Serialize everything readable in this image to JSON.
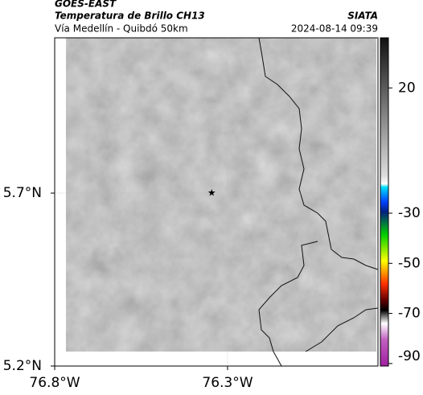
{
  "header": {
    "title": "GOES-EAST",
    "subtitle": "Temperatura de Brillo CH13",
    "route": "Vía Medellín - Quibdó 50km",
    "source": "SIATA",
    "datetime": "2024-08-14 09:39"
  },
  "map": {
    "xlim": [
      -76.8,
      -75.865
    ],
    "ylim": [
      5.2,
      6.149
    ],
    "xticks": [
      {
        "value": -76.8,
        "label": "76.8°W"
      },
      {
        "value": -76.3,
        "label": "76.3°W"
      }
    ],
    "yticks": [
      {
        "value": 5.2,
        "label": "5.2°N"
      },
      {
        "value": 5.7,
        "label": "5.7°N"
      }
    ],
    "grid": true,
    "marker": {
      "lon": -76.346,
      "lat": 5.7
    }
  },
  "colorbar": {
    "lim": [
      -91,
      40
    ],
    "ticks": [
      20,
      -30,
      -50,
      -70,
      -90
    ]
  }
}
